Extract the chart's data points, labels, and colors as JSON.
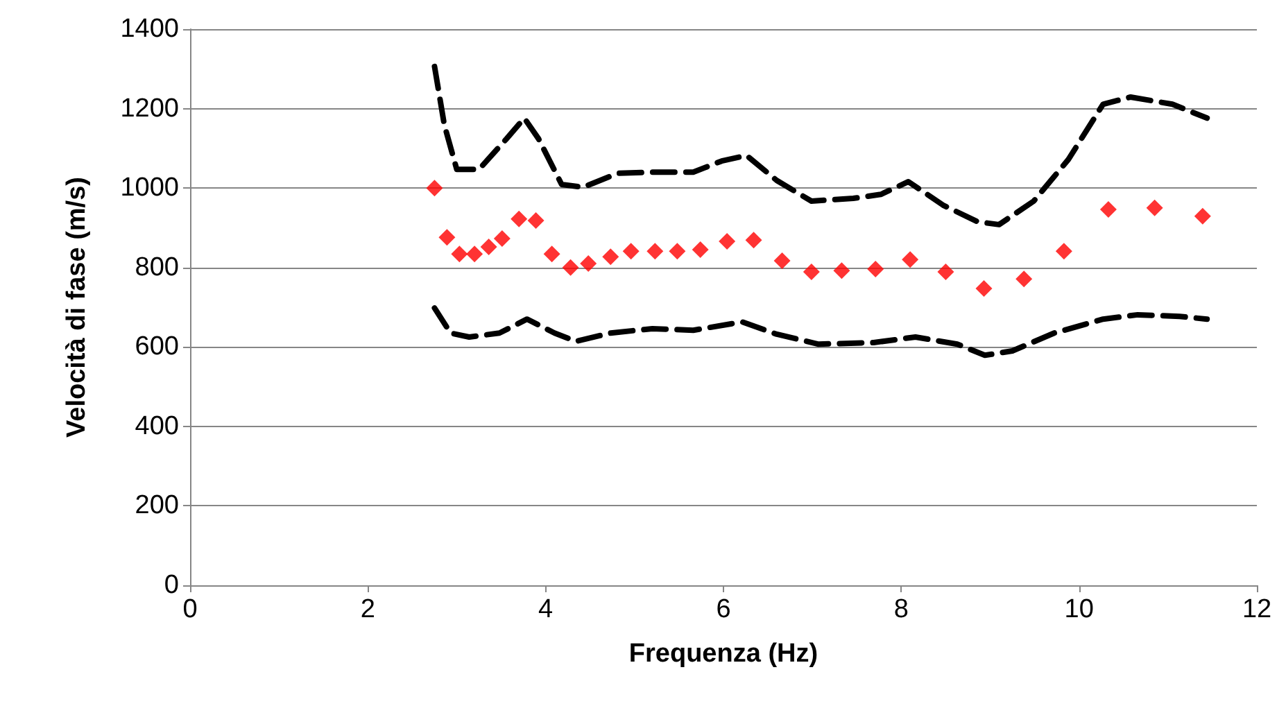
{
  "chart_data": {
    "type": "scatter",
    "xlabel": "Frequenza (Hz)",
    "ylabel": "Velocità di fase (m/s)",
    "xlim": [
      0,
      12
    ],
    "xticks": [
      0,
      2,
      4,
      6,
      8,
      10,
      12
    ],
    "ylim": [
      0,
      1400
    ],
    "yticks": [
      0,
      200,
      400,
      600,
      800,
      1000,
      1200,
      1400
    ],
    "grid": "y",
    "series": [
      {
        "marker": "diamond",
        "color": "#ff0000",
        "x": [
          2.75,
          2.89,
          3.03,
          3.2,
          3.36,
          3.51,
          3.7,
          3.89,
          4.07,
          4.28,
          4.48,
          4.73,
          4.96,
          5.23,
          5.48,
          5.74,
          6.04,
          6.34,
          6.66,
          6.99,
          7.33,
          7.71,
          8.1,
          8.5,
          8.93,
          9.38,
          9.83,
          10.33,
          10.85,
          11.39
        ],
        "values": [
          1000,
          876,
          834,
          834,
          852,
          873,
          922,
          918,
          834,
          800,
          810,
          827,
          841,
          841,
          841,
          845,
          866,
          869,
          817,
          789,
          792,
          796,
          820,
          789,
          747,
          771,
          841,
          946,
          950,
          929
        ]
      },
      {
        "type": "line",
        "marker": "none",
        "line_style": "dashed",
        "color": "#000000",
        "x": [
          2.75,
          2.86,
          3.0,
          3.25,
          3.56,
          3.76,
          3.92,
          4.18,
          4.42,
          4.81,
          5.2,
          5.66,
          5.98,
          6.26,
          6.6,
          6.99,
          7.46,
          7.77,
          8.08,
          8.47,
          8.86,
          9.1,
          9.49,
          9.88,
          10.27,
          10.58,
          11.05,
          11.44
        ],
        "values": [
          1306,
          1159,
          1047,
          1047,
          1124,
          1176,
          1124,
          1009,
          1002,
          1037,
          1040,
          1040,
          1068,
          1082,
          1019,
          967,
          974,
          984,
          1016,
          957,
          915,
          908,
          967,
          1072,
          1211,
          1229,
          1211,
          1176
        ]
      },
      {
        "type": "line",
        "marker": "none",
        "line_style": "dashed",
        "color": "#000000",
        "x": [
          2.75,
          2.93,
          3.14,
          3.48,
          3.79,
          4.1,
          4.34,
          4.73,
          5.2,
          5.66,
          6.21,
          6.6,
          7.07,
          7.69,
          8.16,
          8.63,
          8.94,
          9.25,
          9.72,
          10.27,
          10.66,
          11.13,
          11.44
        ],
        "values": [
          698,
          635,
          625,
          635,
          670,
          635,
          614,
          635,
          646,
          642,
          663,
          632,
          607,
          611,
          625,
          607,
          579,
          590,
          635,
          670,
          681,
          677,
          670
        ]
      }
    ]
  }
}
